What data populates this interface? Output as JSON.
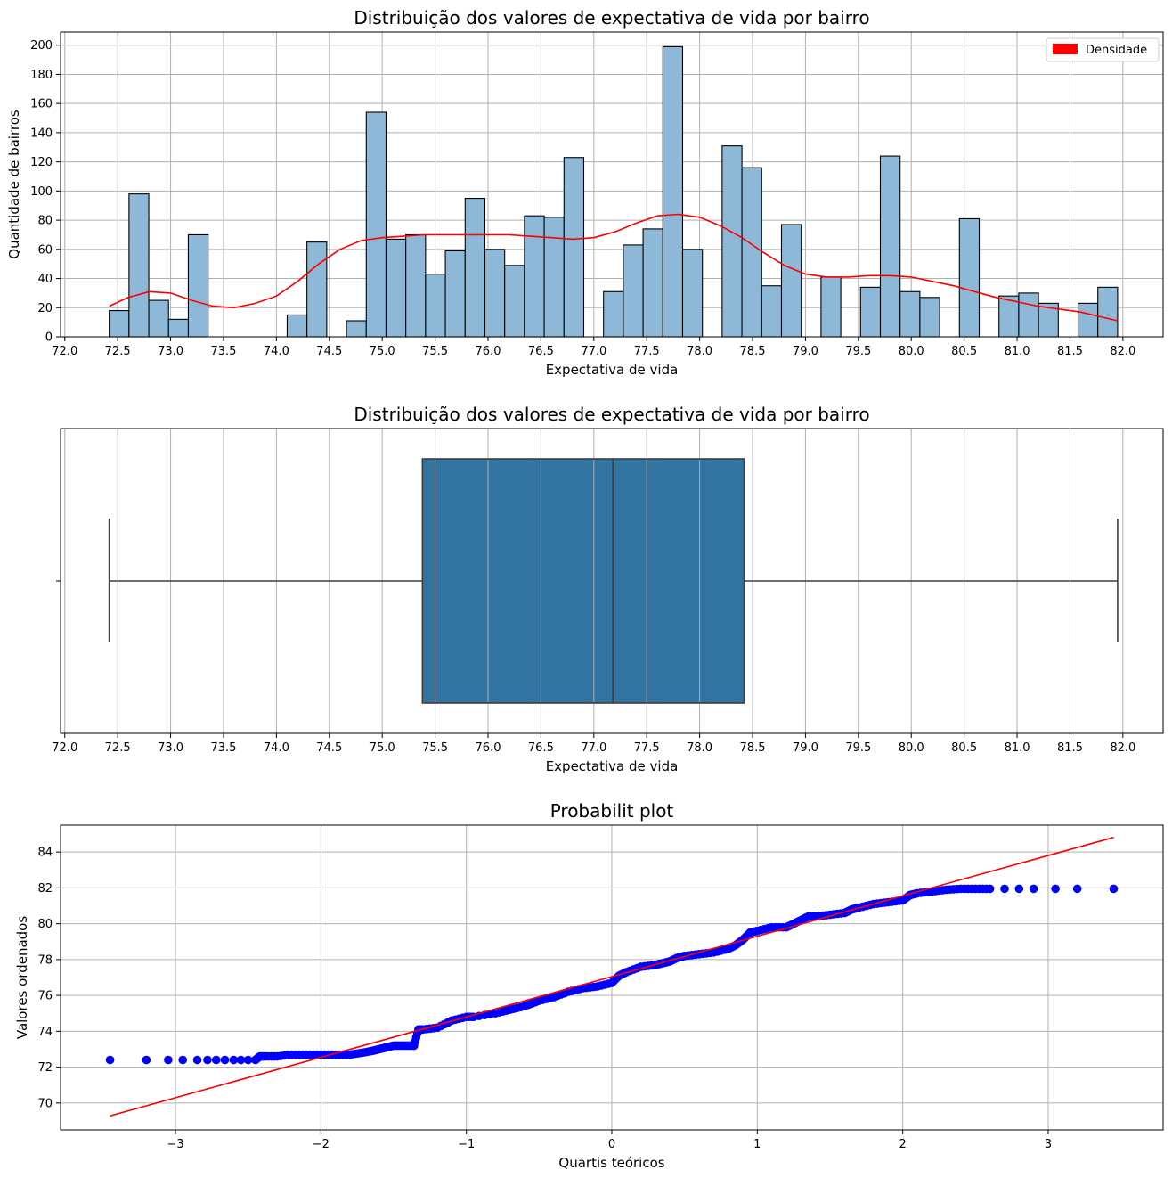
{
  "chart_data": [
    {
      "type": "bar",
      "title": "Distribuição dos valores de expectativa de vida por bairro",
      "xlabel": "Expectativa de vida",
      "ylabel": "Quantidade de bairros",
      "xlim": [
        71.96,
        82.38
      ],
      "ylim": [
        0,
        209
      ],
      "xticks": [
        "72.0",
        "72.5",
        "73.0",
        "73.5",
        "74.0",
        "74.5",
        "75.0",
        "75.5",
        "76.0",
        "76.5",
        "77.0",
        "77.5",
        "78.0",
        "78.5",
        "79.0",
        "79.5",
        "80.0",
        "80.5",
        "81.0",
        "81.5",
        "82.0"
      ],
      "yticks": [
        "0",
        "20",
        "40",
        "60",
        "80",
        "100",
        "120",
        "140",
        "160",
        "180",
        "200"
      ],
      "grid": true,
      "legend": {
        "position": "top-right",
        "entries": [
          {
            "label": "Densidade",
            "color": "#ff0000"
          }
        ]
      },
      "bar_color": "#8db8d8",
      "bin_edges": [
        72.42,
        72.52
      ],
      "bin_width": 0.19,
      "values": [
        18,
        98,
        25,
        12,
        70,
        0,
        0,
        0,
        0,
        15,
        65,
        0,
        11,
        154,
        67,
        70,
        43,
        59,
        95,
        60,
        49,
        83,
        82,
        123,
        0,
        31,
        63,
        74,
        199,
        60,
        0,
        131,
        116,
        35,
        77,
        0,
        41,
        0,
        34,
        124,
        31,
        27,
        0,
        81,
        0,
        28,
        30,
        23,
        0,
        23,
        34
      ],
      "bin_start": 72.42,
      "density_curve": {
        "name": "Densidade",
        "color": "#ff0000",
        "x": [
          72.42,
          72.6,
          72.8,
          73.0,
          73.2,
          73.4,
          73.6,
          73.8,
          74.0,
          74.2,
          74.4,
          74.6,
          74.8,
          75.0,
          75.2,
          75.4,
          75.6,
          75.8,
          76.0,
          76.2,
          76.4,
          76.6,
          76.8,
          77.0,
          77.2,
          77.4,
          77.6,
          77.8,
          78.0,
          78.2,
          78.4,
          78.6,
          78.8,
          79.0,
          79.2,
          79.4,
          79.6,
          79.8,
          80.0,
          80.2,
          80.4,
          80.6,
          80.8,
          81.0,
          81.2,
          81.4,
          81.6,
          81.95
        ],
        "y": [
          21,
          27,
          31,
          30,
          25,
          21,
          20,
          23,
          28,
          38,
          50,
          60,
          66,
          68,
          69,
          70,
          70,
          70,
          70,
          70,
          69,
          68,
          67,
          68,
          72,
          78,
          83,
          84,
          82,
          76,
          68,
          58,
          49,
          43,
          41,
          41,
          42,
          42,
          41,
          38,
          35,
          31,
          27,
          24,
          21,
          19,
          17,
          11
        ]
      }
    },
    {
      "type": "box",
      "title": "Distribuição dos valores de expectativa de vida por bairro",
      "xlabel": "Expectativa de vida",
      "xlim": [
        71.96,
        82.38
      ],
      "xticks": [
        "72.0",
        "72.5",
        "73.0",
        "73.5",
        "74.0",
        "74.5",
        "75.0",
        "75.5",
        "76.0",
        "76.5",
        "77.0",
        "77.5",
        "78.0",
        "78.5",
        "79.0",
        "79.5",
        "80.0",
        "80.5",
        "81.0",
        "81.5",
        "82.0"
      ],
      "grid": true,
      "box_color": "#3274a1",
      "whisker_low": 72.42,
      "q1": 75.38,
      "median": 77.18,
      "q3": 78.42,
      "whisker_high": 81.95
    },
    {
      "type": "scatter",
      "title": "Probabilit plot",
      "xlabel": "Quartis teóricos",
      "ylabel": "Valores ordenados",
      "xlim": [
        -3.79,
        3.79
      ],
      "ylim": [
        68.5,
        85.5
      ],
      "xticks": [
        "−3",
        "−2",
        "−1",
        "0",
        "1",
        "2",
        "3"
      ],
      "xtick_values": [
        -3,
        -2,
        -1,
        0,
        1,
        2,
        3
      ],
      "yticks": [
        "70",
        "72",
        "74",
        "76",
        "78",
        "80",
        "82",
        "84"
      ],
      "ytick_values": [
        70,
        72,
        74,
        76,
        78,
        80,
        82,
        84
      ],
      "grid": true,
      "point_color": "#0000ff",
      "fit_line": {
        "color": "#ff0000",
        "x": [
          -3.45,
          3.45
        ],
        "y": [
          69.28,
          84.82
        ]
      },
      "points_x": [
        -3.45,
        -3.2,
        -3.05,
        -2.95,
        -2.85,
        -2.78,
        -2.72,
        -2.66,
        -2.6,
        -2.55,
        -2.5,
        -2.45,
        -2.42,
        -2.38,
        -2.3,
        -2.2,
        -2.1,
        -2.0,
        -1.9,
        -1.8,
        -1.72,
        -1.65,
        -1.6,
        -1.55,
        -1.5,
        -1.45,
        -1.4,
        -1.36,
        -1.33,
        -1.3,
        -1.2,
        -1.1,
        -1.0,
        -0.95,
        -0.8,
        -0.7,
        -0.6,
        -0.5,
        -0.4,
        -0.3,
        -0.2,
        -0.1,
        0.0,
        0.05,
        0.1,
        0.2,
        0.3,
        0.35,
        0.4,
        0.45,
        0.5,
        0.6,
        0.7,
        0.8,
        0.85,
        0.9,
        0.95,
        1.0,
        1.1,
        1.2,
        1.25,
        1.3,
        1.35,
        1.4,
        1.5,
        1.6,
        1.65,
        1.7,
        1.8,
        1.9,
        2.0,
        2.05,
        2.1,
        2.2,
        2.3,
        2.4,
        2.5,
        2.6,
        2.7,
        2.8,
        2.9,
        3.05,
        3.2,
        3.45
      ],
      "points_y": [
        72.4,
        72.4,
        72.4,
        72.4,
        72.4,
        72.4,
        72.4,
        72.4,
        72.4,
        72.4,
        72.4,
        72.4,
        72.6,
        72.6,
        72.6,
        72.7,
        72.7,
        72.7,
        72.7,
        72.7,
        72.8,
        72.9,
        73.0,
        73.1,
        73.2,
        73.2,
        73.2,
        73.2,
        74.1,
        74.1,
        74.2,
        74.6,
        74.8,
        74.8,
        75.0,
        75.2,
        75.4,
        75.7,
        75.9,
        76.2,
        76.4,
        76.5,
        76.7,
        77.1,
        77.3,
        77.6,
        77.7,
        77.8,
        77.9,
        78.1,
        78.2,
        78.3,
        78.4,
        78.6,
        78.8,
        79.1,
        79.5,
        79.6,
        79.8,
        79.8,
        80.0,
        80.2,
        80.4,
        80.4,
        80.5,
        80.6,
        80.8,
        80.9,
        81.1,
        81.2,
        81.3,
        81.6,
        81.7,
        81.8,
        81.9,
        81.95,
        81.95,
        81.95,
        81.95,
        81.95,
        81.95,
        81.95,
        81.95,
        81.95
      ]
    }
  ]
}
